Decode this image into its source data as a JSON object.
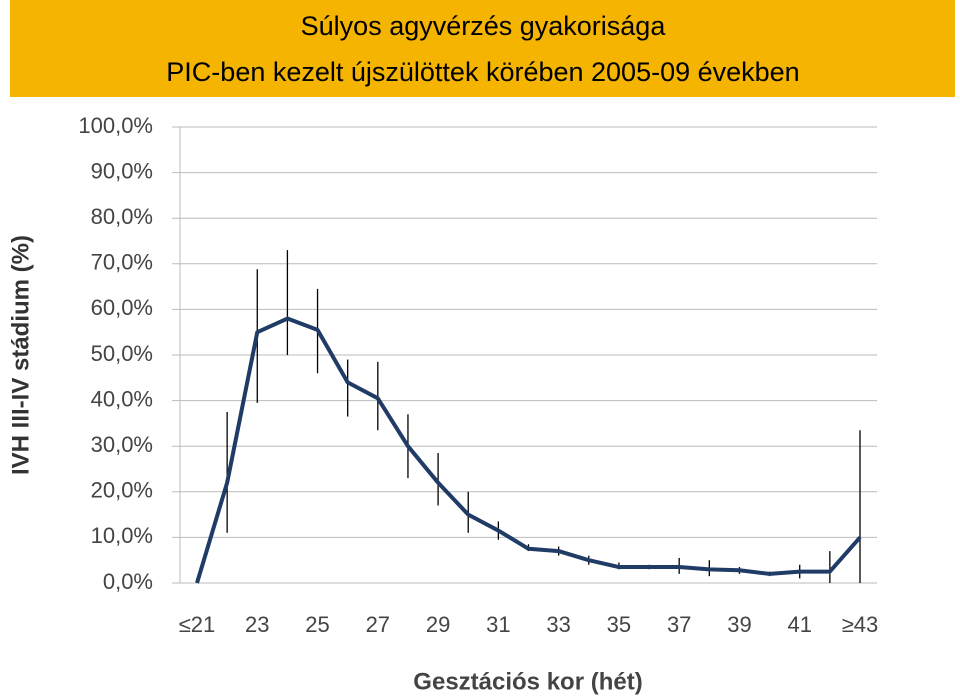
{
  "chart_data": {
    "type": "line",
    "title": "Súlyos agyvérzés gyakorisága",
    "subtitle": "PIC-ben kezelt újszülöttek körében 2005-09 években",
    "x_label": "Gesztációs kor (hét)",
    "y_label": "IVH III-IV stádium (%)",
    "categories": [
      "≤21",
      null,
      "23",
      null,
      "25",
      null,
      "27",
      null,
      "29",
      null,
      "31",
      null,
      "33",
      null,
      "35",
      null,
      "37",
      null,
      "39",
      null,
      "41",
      null,
      "≥43"
    ],
    "series": [
      {
        "color": "#1f3b66",
        "values": [
          0,
          22,
          55,
          58,
          55.5,
          44,
          40.5,
          30,
          22,
          15,
          11.5,
          7.5,
          7,
          5,
          3.5,
          3.5,
          3.5,
          3,
          2.8,
          2,
          2.5,
          2.5,
          10
        ],
        "low": [
          null,
          11,
          39.5,
          50,
          46,
          36.5,
          33.5,
          23,
          17,
          11,
          9.5,
          7,
          6,
          4,
          3,
          3,
          2,
          1.5,
          2,
          1.5,
          1,
          0,
          0
        ],
        "high": [
          null,
          37.5,
          68.8,
          73,
          64.5,
          49,
          48.5,
          37,
          28.5,
          20,
          13.5,
          8.5,
          8,
          6,
          4.5,
          4,
          5.5,
          5,
          3.5,
          2.5,
          4,
          7,
          33.5
        ]
      }
    ],
    "ylim": [
      0,
      100
    ],
    "yticks": [
      {
        "value": 0,
        "label": "0,0%"
      },
      {
        "value": 10,
        "label": "10,0%"
      },
      {
        "value": 20,
        "label": "20,0%"
      },
      {
        "value": 30,
        "label": "30,0%"
      },
      {
        "value": 40,
        "label": "40,0%"
      },
      {
        "value": 50,
        "label": "50,0%"
      },
      {
        "value": 60,
        "label": "60,0%"
      },
      {
        "value": 70,
        "label": "70,0%"
      },
      {
        "value": 80,
        "label": "80,0%"
      },
      {
        "value": 90,
        "label": "90,0%"
      },
      {
        "value": 100,
        "label": "100,0%"
      }
    ],
    "grid": true
  }
}
